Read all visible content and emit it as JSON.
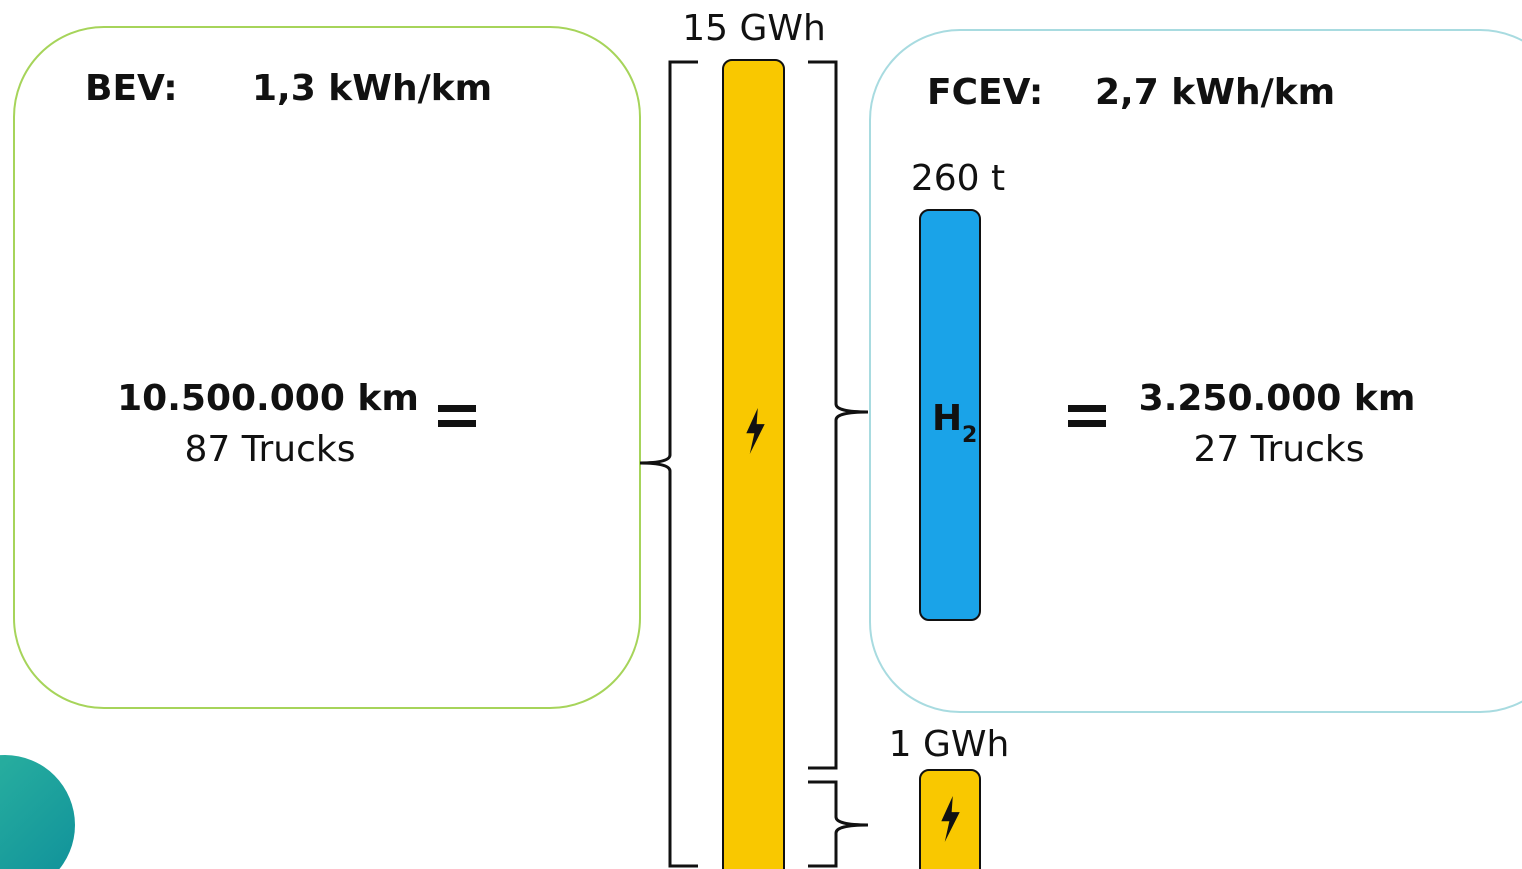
{
  "total_energy": "15 GWh",
  "bev": {
    "label": "BEV:",
    "consumption": "1,3 kWh/km",
    "distance": "10.500.000 km",
    "trucks": "87 Trucks"
  },
  "fcev": {
    "label": "FCEV:",
    "consumption": "2,7 kWh/km",
    "hydrogen_mass": "260 t",
    "hydrogen": {
      "base": "H",
      "sub": "2"
    },
    "distance": "3.250.000 km",
    "trucks": "27 Trucks"
  },
  "remaining_energy": "1 GWh"
}
